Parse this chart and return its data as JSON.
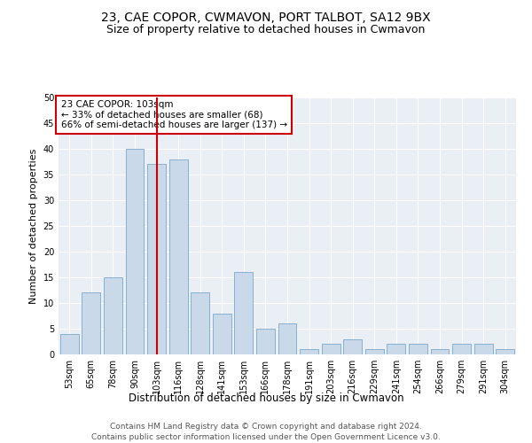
{
  "title": "23, CAE COPOR, CWMAVON, PORT TALBOT, SA12 9BX",
  "subtitle": "Size of property relative to detached houses in Cwmavon",
  "xlabel": "Distribution of detached houses by size in Cwmavon",
  "ylabel": "Number of detached properties",
  "categories": [
    "53sqm",
    "65sqm",
    "78sqm",
    "90sqm",
    "103sqm",
    "116sqm",
    "128sqm",
    "141sqm",
    "153sqm",
    "166sqm",
    "178sqm",
    "191sqm",
    "203sqm",
    "216sqm",
    "229sqm",
    "241sqm",
    "254sqm",
    "266sqm",
    "279sqm",
    "291sqm",
    "304sqm"
  ],
  "values": [
    4,
    12,
    15,
    40,
    37,
    38,
    12,
    8,
    16,
    5,
    6,
    1,
    2,
    3,
    1,
    2,
    2,
    1,
    2,
    2,
    1
  ],
  "bar_color": "#c9d9e9",
  "bar_edge_color": "#7aa8cc",
  "red_line_index": 4,
  "annotation_line1": "23 CAE COPOR: 103sqm",
  "annotation_line2": "← 33% of detached houses are smaller (68)",
  "annotation_line3": "66% of semi-detached houses are larger (137) →",
  "annotation_box_color": "#ffffff",
  "annotation_box_edge": "#cc0000",
  "red_line_color": "#cc0000",
  "ylim": [
    0,
    50
  ],
  "yticks": [
    0,
    5,
    10,
    15,
    20,
    25,
    30,
    35,
    40,
    45,
    50
  ],
  "bg_color": "#eaeff5",
  "footer_line1": "Contains HM Land Registry data © Crown copyright and database right 2024.",
  "footer_line2": "Contains public sector information licensed under the Open Government Licence v3.0.",
  "title_fontsize": 10,
  "subtitle_fontsize": 9,
  "xlabel_fontsize": 8.5,
  "ylabel_fontsize": 8,
  "tick_fontsize": 7,
  "footer_fontsize": 6.5,
  "annot_fontsize": 7.5
}
